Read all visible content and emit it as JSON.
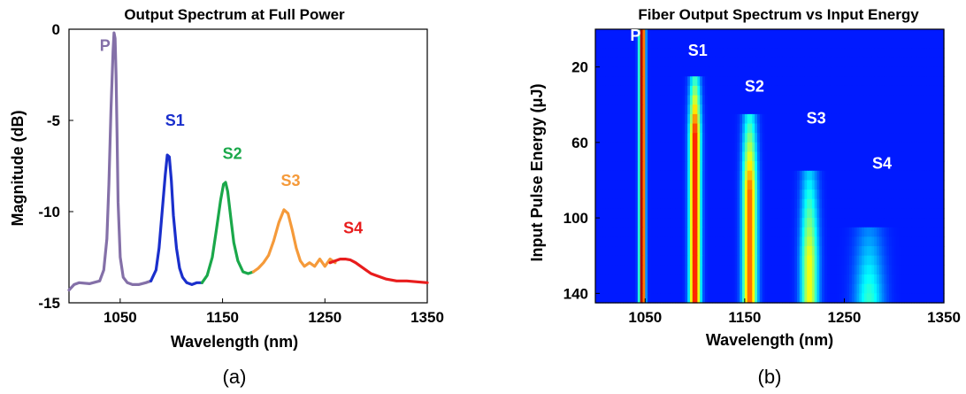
{
  "chart_data": [
    {
      "type": "line",
      "panel_label": "(a)",
      "title": "Output Spectrum at Full Power",
      "xlabel": "Wavelength (nm)",
      "ylabel": "Magnitude (dB)",
      "xlim": [
        1000,
        1350
      ],
      "ylim": [
        -15,
        0
      ],
      "xticks": [
        "1050",
        "1150",
        "1250",
        "1350"
      ],
      "xtick_values": [
        1050,
        1150,
        1250,
        1350
      ],
      "yticks": [
        "0",
        "-5",
        "-10",
        "-15"
      ],
      "ytick_values": [
        0,
        -5,
        -10,
        -15
      ],
      "series": [
        {
          "name": "P",
          "color": "#8470a8",
          "x": [
            1000,
            1005,
            1010,
            1020,
            1030,
            1034,
            1037,
            1039,
            1041,
            1043,
            1044,
            1045,
            1046,
            1047,
            1048,
            1050,
            1053,
            1057,
            1062,
            1068,
            1075,
            1080
          ],
          "y": [
            -14.3,
            -14.0,
            -13.9,
            -13.95,
            -13.8,
            -13.2,
            -11.5,
            -8.5,
            -4.5,
            -1.2,
            -0.2,
            -0.5,
            -2.5,
            -6.0,
            -9.5,
            -12.5,
            -13.6,
            -13.9,
            -14.0,
            -14.0,
            -13.9,
            -13.8
          ]
        },
        {
          "name": "S1",
          "color": "#1a2fcc",
          "x": [
            1080,
            1085,
            1088,
            1091,
            1094,
            1096,
            1098,
            1100,
            1102,
            1105,
            1108,
            1111,
            1115,
            1120,
            1125,
            1130
          ],
          "y": [
            -13.8,
            -13.2,
            -12.0,
            -10.0,
            -8.0,
            -6.9,
            -7.0,
            -8.3,
            -10.2,
            -12.0,
            -13.1,
            -13.6,
            -13.9,
            -14.0,
            -13.9,
            -13.9
          ]
        },
        {
          "name": "S2",
          "color": "#1aa84a",
          "x": [
            1130,
            1135,
            1140,
            1144,
            1148,
            1151,
            1153,
            1155,
            1158,
            1161,
            1165,
            1170,
            1175,
            1180
          ],
          "y": [
            -13.9,
            -13.5,
            -12.5,
            -11.0,
            -9.4,
            -8.5,
            -8.4,
            -8.9,
            -10.3,
            -11.7,
            -12.7,
            -13.3,
            -13.4,
            -13.3
          ]
        },
        {
          "name": "S3",
          "color": "#f59a3a",
          "x": [
            1180,
            1185,
            1190,
            1195,
            1200,
            1205,
            1210,
            1214,
            1218,
            1222,
            1226,
            1230,
            1235,
            1240,
            1245,
            1250,
            1255,
            1260
          ],
          "y": [
            -13.3,
            -13.1,
            -12.8,
            -12.4,
            -11.6,
            -10.6,
            -9.9,
            -10.1,
            -11.0,
            -12.0,
            -12.7,
            -13.0,
            -12.8,
            -13.0,
            -12.6,
            -13.0,
            -12.6,
            -12.8
          ]
        },
        {
          "name": "S4",
          "color": "#e81c1c",
          "x": [
            1255,
            1260,
            1265,
            1270,
            1275,
            1280,
            1285,
            1290,
            1295,
            1300,
            1310,
            1320,
            1330,
            1340,
            1350
          ],
          "y": [
            -12.8,
            -12.7,
            -12.6,
            -12.6,
            -12.65,
            -12.8,
            -13.0,
            -13.2,
            -13.4,
            -13.5,
            -13.7,
            -13.8,
            -13.8,
            -13.85,
            -13.9
          ]
        }
      ],
      "annotations": [
        {
          "text": "P",
          "x": 1030,
          "y": -1.2,
          "color": "#8470a8"
        },
        {
          "text": "S1",
          "x": 1094,
          "y": -5.3,
          "color": "#1a2fcc"
        },
        {
          "text": "S2",
          "x": 1150,
          "y": -7.1,
          "color": "#1aa84a"
        },
        {
          "text": "S3",
          "x": 1207,
          "y": -8.6,
          "color": "#f59a3a"
        },
        {
          "text": "S4",
          "x": 1268,
          "y": -11.2,
          "color": "#e81c1c"
        }
      ]
    },
    {
      "type": "heatmap",
      "panel_label": "(b)",
      "title": "Fiber Output Spectrum vs Input Energy",
      "xlabel": "Wavelength (nm)",
      "ylabel": "Input Pulse Energy (μJ)",
      "xlim": [
        1000,
        1350
      ],
      "ylim": [
        0,
        145
      ],
      "y_reversed": true,
      "xticks": [
        "1050",
        "1150",
        "1250",
        "1350"
      ],
      "xtick_values": [
        1050,
        1150,
        1250,
        1350
      ],
      "yticks": [
        "20",
        "60",
        "100",
        "140"
      ],
      "ytick_values": [
        20,
        60,
        100,
        140
      ],
      "colormap": "jet",
      "peaks": [
        {
          "name": "P",
          "center_nm": 1047,
          "width_nm": 3,
          "onset_uJ": 0,
          "peak_uJ": 0,
          "max_level": 1.0
        },
        {
          "name": "S1",
          "center_nm": 1100,
          "width_nm": 5.5,
          "onset_uJ": 25,
          "peak_uJ": 55,
          "max_level": 0.85
        },
        {
          "name": "S2",
          "center_nm": 1155,
          "width_nm": 7,
          "onset_uJ": 45,
          "peak_uJ": 85,
          "max_level": 0.75
        },
        {
          "name": "S3",
          "center_nm": 1215,
          "width_nm": 8.5,
          "onset_uJ": 75,
          "peak_uJ": 120,
          "max_level": 0.55
        },
        {
          "name": "S4",
          "center_nm": 1275,
          "width_nm": 14,
          "onset_uJ": 105,
          "peak_uJ": 140,
          "max_level": 0.32
        }
      ],
      "annotations": [
        {
          "text": "P",
          "x": 1035,
          "y": 6
        },
        {
          "text": "S1",
          "x": 1093,
          "y": 14
        },
        {
          "text": "S2",
          "x": 1150,
          "y": 33
        },
        {
          "text": "S3",
          "x": 1212,
          "y": 50
        },
        {
          "text": "S4",
          "x": 1278,
          "y": 74
        }
      ]
    }
  ]
}
